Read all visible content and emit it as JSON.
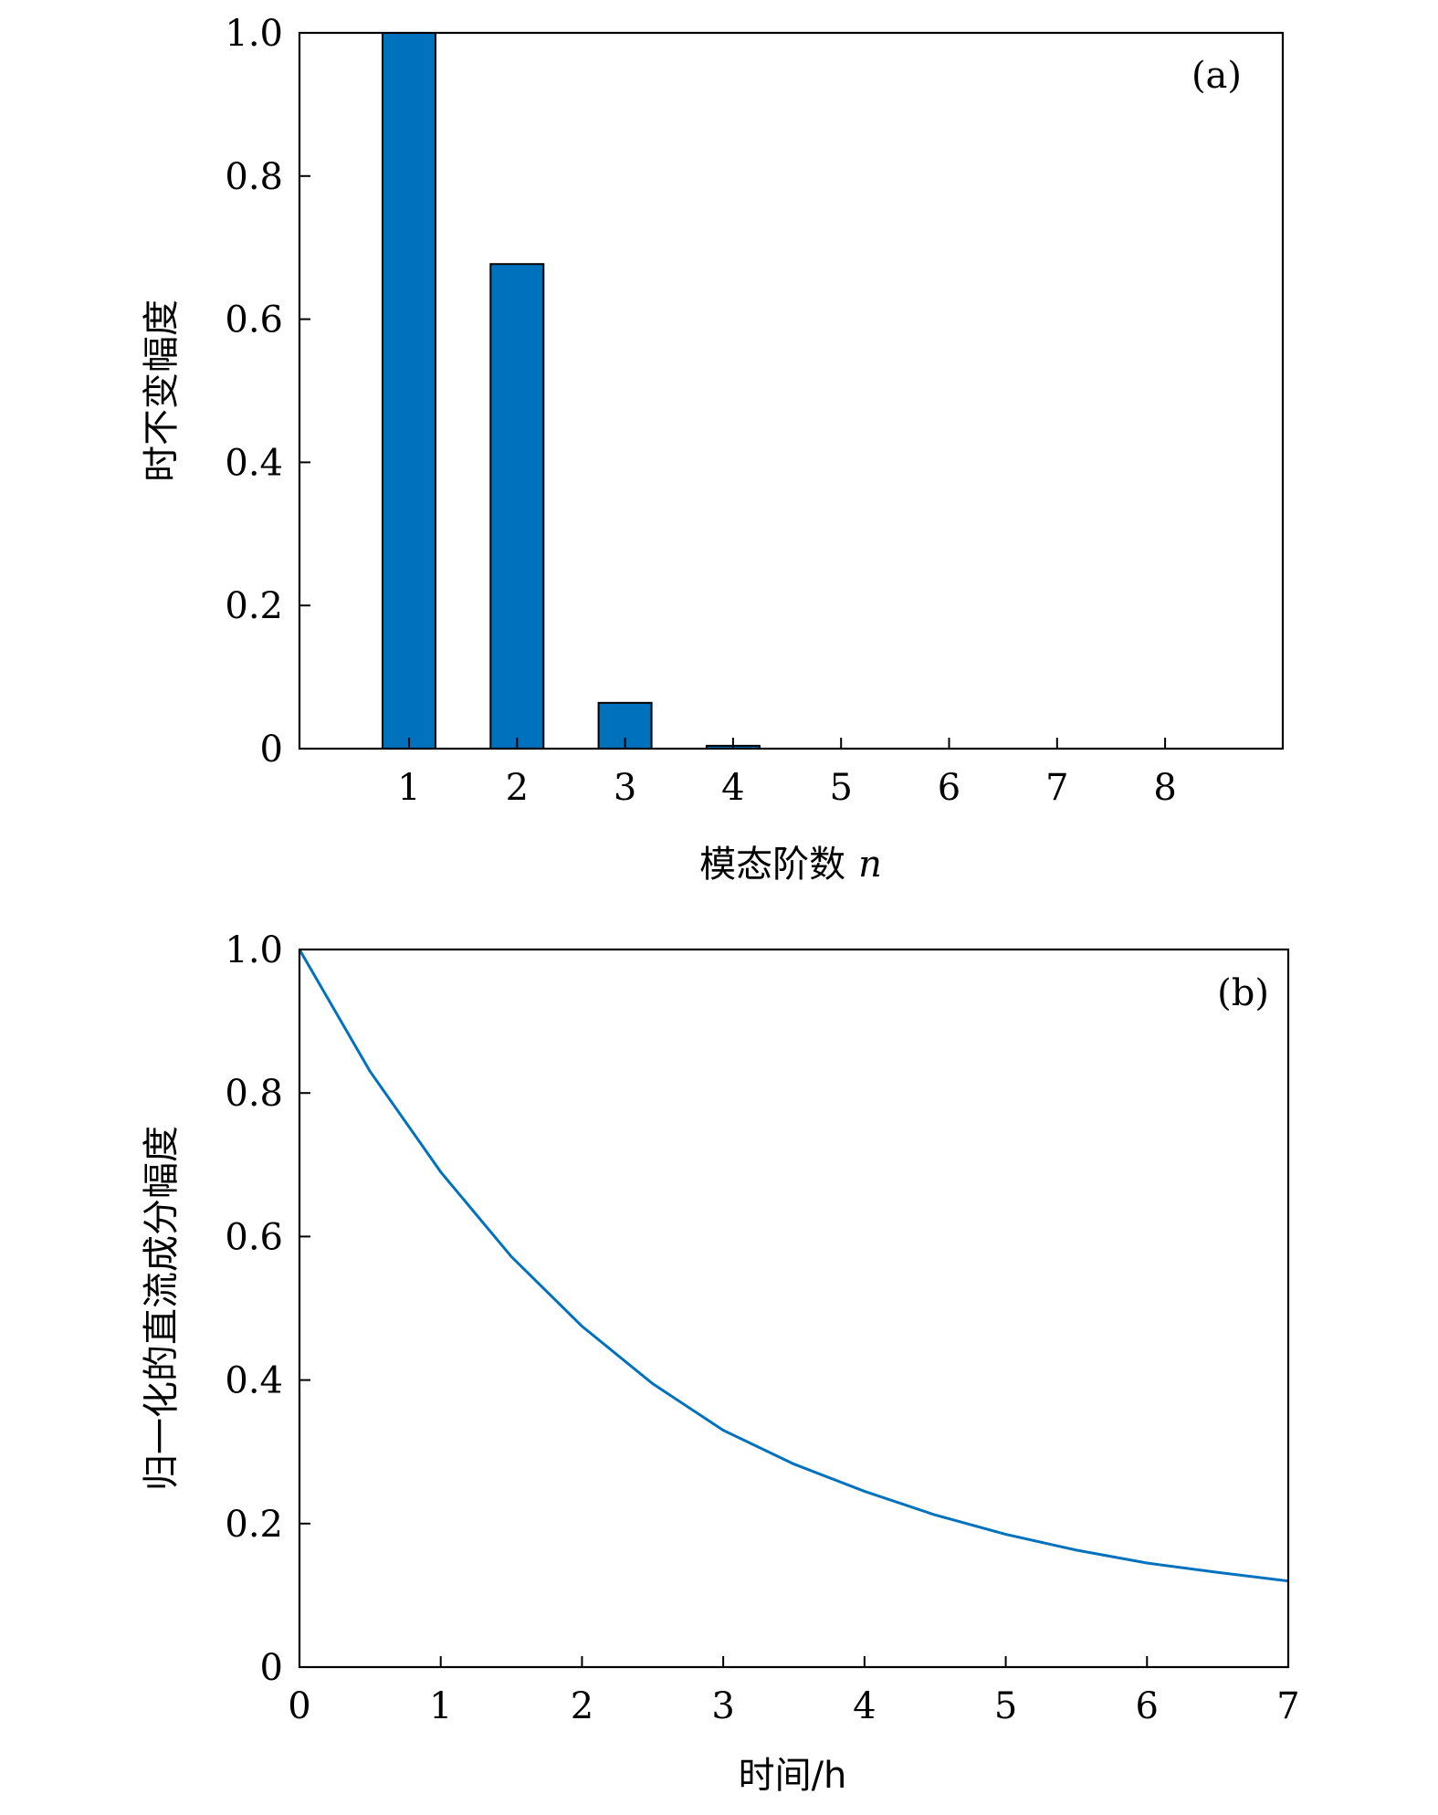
{
  "chart_data": [
    {
      "type": "bar",
      "panel_label": "(a)",
      "categories": [
        "1",
        "2",
        "3",
        "4",
        "5",
        "6",
        "7",
        "8"
      ],
      "values": [
        1.0,
        0.677,
        0.064,
        0.004,
        0,
        0,
        0,
        0
      ],
      "xlabel": "模态阶数",
      "xlabel_var": "n",
      "ylabel": "时不变幅度",
      "ylim": [
        0,
        1.0
      ],
      "yticks": [
        "0",
        "0.2",
        "0.4",
        "0.6",
        "0.8",
        "1.0"
      ],
      "grid": false,
      "legend": false,
      "color": "#0072bd"
    },
    {
      "type": "line",
      "panel_label": "(b)",
      "x": [
        0,
        0.5,
        1,
        1.5,
        2,
        2.5,
        3,
        3.5,
        4,
        4.5,
        5,
        5.5,
        6,
        6.5,
        7
      ],
      "y": [
        1.0,
        0.83,
        0.69,
        0.572,
        0.475,
        0.395,
        0.33,
        0.283,
        0.245,
        0.212,
        0.185,
        0.163,
        0.145,
        0.132,
        0.12
      ],
      "xlabel": "时间/h",
      "ylabel": "归一化的直流成分幅度",
      "xlim": [
        0,
        7
      ],
      "ylim": [
        0,
        1.0
      ],
      "xticks": [
        "0",
        "1",
        "2",
        "3",
        "4",
        "5",
        "6",
        "7"
      ],
      "yticks": [
        "0",
        "0.2",
        "0.4",
        "0.6",
        "0.8",
        "1.0"
      ],
      "grid": false,
      "legend": false,
      "color": "#0072bd"
    }
  ]
}
